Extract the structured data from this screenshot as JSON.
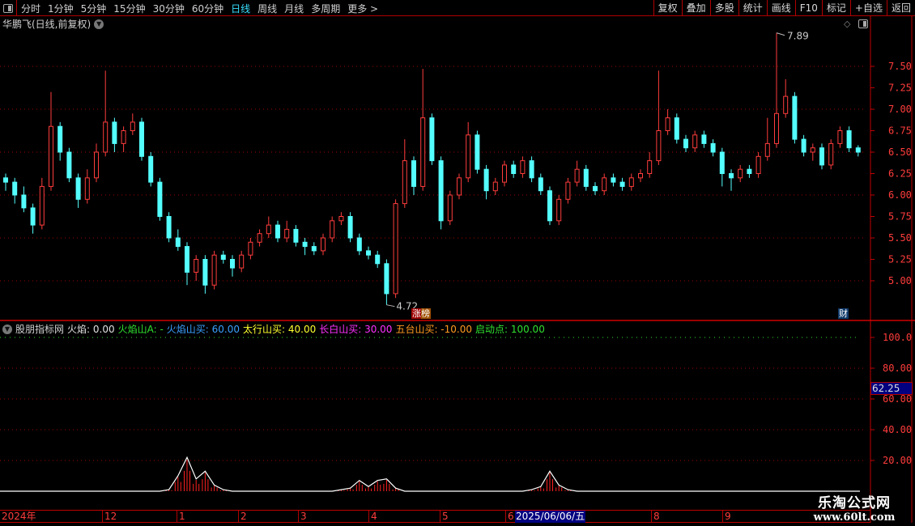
{
  "toolbar": {
    "tabs": [
      "分时",
      "1分钟",
      "5分钟",
      "15分钟",
      "30分钟",
      "60分钟",
      "日线",
      "周线",
      "月线",
      "多周期",
      "更多 >"
    ],
    "active": "日线",
    "buttons": [
      "复权",
      "叠加",
      "多股",
      "统计",
      "画线",
      "F10",
      "标记",
      "+自选",
      "返回"
    ]
  },
  "stock_title": "华鹏飞(日线,前复权)",
  "colors": {
    "up": "#ff3c3c",
    "down": "#54ffff",
    "axis": "#ff3c3c",
    "grid": "#b00000",
    "selected_date_bg": "#000080"
  },
  "price_axis": {
    "ticks": [
      "7.50",
      "7.25",
      "7.00",
      "6.75",
      "6.50",
      "6.25",
      "6.00",
      "5.75",
      "5.50",
      "5.25",
      "5.00"
    ],
    "range": [
      4.6,
      7.95
    ]
  },
  "max_label": "7.89",
  "min_label": "4.72",
  "badges": {
    "zhangbang": "涨榜",
    "cai": "财"
  },
  "candles": [
    [
      6.2,
      6.25,
      6.05,
      6.15
    ],
    [
      6.15,
      6.2,
      5.9,
      6.0
    ],
    [
      6.0,
      6.1,
      5.8,
      5.85
    ],
    [
      5.85,
      5.9,
      5.55,
      5.65
    ],
    [
      5.65,
      6.2,
      5.6,
      6.1
    ],
    [
      6.1,
      7.2,
      6.05,
      6.8
    ],
    [
      6.8,
      6.85,
      6.4,
      6.5
    ],
    [
      6.5,
      6.55,
      6.15,
      6.2
    ],
    [
      6.2,
      6.25,
      5.85,
      5.95
    ],
    [
      5.95,
      6.3,
      5.9,
      6.2
    ],
    [
      6.2,
      6.6,
      6.15,
      6.5
    ],
    [
      6.5,
      7.45,
      6.45,
      6.85
    ],
    [
      6.85,
      6.9,
      6.5,
      6.6
    ],
    [
      6.6,
      6.8,
      6.5,
      6.75
    ],
    [
      6.75,
      6.95,
      6.7,
      6.85
    ],
    [
      6.85,
      6.9,
      6.4,
      6.45
    ],
    [
      6.45,
      6.5,
      6.1,
      6.15
    ],
    [
      6.15,
      6.2,
      5.7,
      5.75
    ],
    [
      5.75,
      5.8,
      5.45,
      5.5
    ],
    [
      5.5,
      5.6,
      5.35,
      5.4
    ],
    [
      5.4,
      5.45,
      4.95,
      5.1
    ],
    [
      5.1,
      5.3,
      5.0,
      5.25
    ],
    [
      5.25,
      5.3,
      4.85,
      4.95
    ],
    [
      4.95,
      5.35,
      4.9,
      5.3
    ],
    [
      5.3,
      5.35,
      5.2,
      5.25
    ],
    [
      5.25,
      5.3,
      5.05,
      5.15
    ],
    [
      5.15,
      5.35,
      5.1,
      5.3
    ],
    [
      5.3,
      5.5,
      5.25,
      5.45
    ],
    [
      5.45,
      5.6,
      5.4,
      5.55
    ],
    [
      5.55,
      5.75,
      5.5,
      5.65
    ],
    [
      5.65,
      5.7,
      5.45,
      5.5
    ],
    [
      5.5,
      5.7,
      5.45,
      5.6
    ],
    [
      5.6,
      5.65,
      5.4,
      5.45
    ],
    [
      5.45,
      5.5,
      5.3,
      5.4
    ],
    [
      5.4,
      5.45,
      5.3,
      5.35
    ],
    [
      5.35,
      5.55,
      5.3,
      5.5
    ],
    [
      5.5,
      5.75,
      5.45,
      5.7
    ],
    [
      5.7,
      5.8,
      5.65,
      5.75
    ],
    [
      5.75,
      5.8,
      5.45,
      5.5
    ],
    [
      5.5,
      5.55,
      5.3,
      5.35
    ],
    [
      5.35,
      5.4,
      5.25,
      5.3
    ],
    [
      5.3,
      5.35,
      5.15,
      5.2
    ],
    [
      5.2,
      5.25,
      4.72,
      4.85
    ],
    [
      4.85,
      5.95,
      4.8,
      5.9
    ],
    [
      5.9,
      6.65,
      5.85,
      6.4
    ],
    [
      6.4,
      6.45,
      6.0,
      6.1
    ],
    [
      6.1,
      7.47,
      6.05,
      6.9
    ],
    [
      6.9,
      6.95,
      6.35,
      6.4
    ],
    [
      6.4,
      6.45,
      5.6,
      5.7
    ],
    [
      5.7,
      6.05,
      5.65,
      6.0
    ],
    [
      6.0,
      6.25,
      5.95,
      6.2
    ],
    [
      6.2,
      6.85,
      6.15,
      6.7
    ],
    [
      6.7,
      6.75,
      6.25,
      6.3
    ],
    [
      6.3,
      6.35,
      5.95,
      6.05
    ],
    [
      6.05,
      6.2,
      6.0,
      6.15
    ],
    [
      6.15,
      6.4,
      6.1,
      6.35
    ],
    [
      6.35,
      6.4,
      6.2,
      6.25
    ],
    [
      6.25,
      6.45,
      6.2,
      6.4
    ],
    [
      6.4,
      6.45,
      6.15,
      6.2
    ],
    [
      6.2,
      6.25,
      6.0,
      6.05
    ],
    [
      6.05,
      6.1,
      5.65,
      5.7
    ],
    [
      5.7,
      6.0,
      5.65,
      5.95
    ],
    [
      5.95,
      6.2,
      5.9,
      6.15
    ],
    [
      6.15,
      6.4,
      6.1,
      6.3
    ],
    [
      6.3,
      6.35,
      6.05,
      6.1
    ],
    [
      6.1,
      6.15,
      6.0,
      6.05
    ],
    [
      6.05,
      6.25,
      6.0,
      6.2
    ],
    [
      6.2,
      6.25,
      6.1,
      6.15
    ],
    [
      6.15,
      6.2,
      6.05,
      6.1
    ],
    [
      6.1,
      6.25,
      6.05,
      6.2
    ],
    [
      6.2,
      6.3,
      6.15,
      6.25
    ],
    [
      6.25,
      6.5,
      6.2,
      6.4
    ],
    [
      6.4,
      7.45,
      6.35,
      6.75
    ],
    [
      6.75,
      7.0,
      6.7,
      6.9
    ],
    [
      6.9,
      6.95,
      6.6,
      6.65
    ],
    [
      6.65,
      6.7,
      6.5,
      6.55
    ],
    [
      6.55,
      6.75,
      6.5,
      6.7
    ],
    [
      6.7,
      6.75,
      6.55,
      6.6
    ],
    [
      6.6,
      6.65,
      6.45,
      6.5
    ],
    [
      6.5,
      6.55,
      6.1,
      6.25
    ],
    [
      6.25,
      6.3,
      6.05,
      6.2
    ],
    [
      6.2,
      6.35,
      6.15,
      6.3
    ],
    [
      6.3,
      6.35,
      6.2,
      6.25
    ],
    [
      6.25,
      6.5,
      6.2,
      6.45
    ],
    [
      6.45,
      6.9,
      6.4,
      6.6
    ],
    [
      6.6,
      7.89,
      6.55,
      6.95
    ],
    [
      6.95,
      7.35,
      6.9,
      7.15
    ],
    [
      7.15,
      7.2,
      6.6,
      6.65
    ],
    [
      6.65,
      6.7,
      6.45,
      6.5
    ],
    [
      6.5,
      6.6,
      6.4,
      6.55
    ],
    [
      6.55,
      6.6,
      6.3,
      6.35
    ],
    [
      6.35,
      6.65,
      6.3,
      6.6
    ],
    [
      6.6,
      6.8,
      6.55,
      6.75
    ],
    [
      6.75,
      6.8,
      6.5,
      6.55
    ],
    [
      6.55,
      6.58,
      6.45,
      6.5
    ]
  ],
  "indicator": {
    "name": "股朋指标网",
    "fields": [
      {
        "label": "火焰: 0.00",
        "color": "#e0e0e0"
      },
      {
        "label": "火焰山A: -",
        "color": "#30e030"
      },
      {
        "label": "火焰山买: 60.00",
        "color": "#3aa0ff"
      },
      {
        "label": "太行山买: 40.00",
        "color": "#ffff30"
      },
      {
        "label": "长白山买: 30.00",
        "color": "#ff30ff"
      },
      {
        "label": "五台山买: -10.00",
        "color": "#ff9a20"
      },
      {
        "label": "启动点: 100.00",
        "color": "#30e030"
      }
    ],
    "axis_ticks": [
      "100.0",
      "80.00",
      "60.00",
      "40.00",
      "20.00"
    ],
    "current_value": "62.25",
    "values": [
      0,
      0,
      0,
      0,
      0,
      0,
      0,
      0,
      0,
      0,
      0,
      0,
      0,
      0,
      0,
      0,
      0,
      0,
      1,
      10,
      22,
      8,
      13,
      4,
      1,
      0,
      0,
      0,
      0,
      0,
      0,
      0,
      0,
      0,
      0,
      0,
      0,
      1,
      2,
      7,
      3,
      7,
      8,
      2,
      0,
      0,
      0,
      0,
      0,
      0,
      0,
      0,
      0,
      0,
      0,
      0,
      0,
      0,
      1,
      3,
      13,
      4,
      1,
      0,
      0,
      0,
      0,
      0,
      0,
      0,
      0,
      0,
      0,
      0,
      0,
      0,
      0,
      0,
      0,
      0,
      0,
      0,
      0,
      0,
      0,
      0,
      0,
      0,
      0,
      0,
      0,
      0,
      0,
      0,
      0
    ]
  },
  "time_axis": {
    "labels": [
      "2024年",
      "12",
      "1",
      "2",
      "3",
      "4",
      "5",
      "6",
      "8",
      "9"
    ],
    "selected": "2025/06/06/五"
  },
  "watermark": {
    "name": "乐淘公式网",
    "url": "www.60lt.com"
  }
}
